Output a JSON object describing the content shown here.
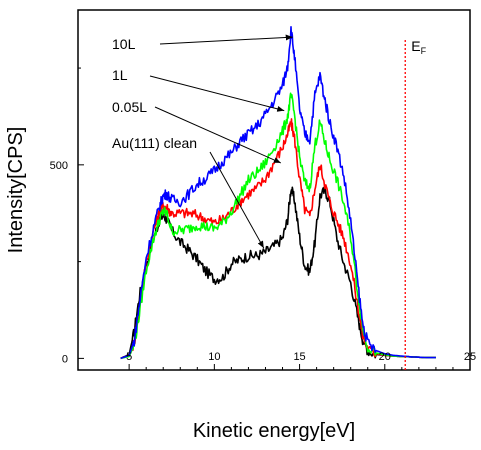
{
  "chart_data": {
    "type": "line",
    "xlabel": "Kinetic energy[eV]",
    "ylabel": "Intensity[CPS]",
    "xlim": [
      2,
      25
    ],
    "ylim": [
      -30,
      900
    ],
    "xticks": [
      5,
      10,
      15,
      20,
      25
    ],
    "yticks": [
      0,
      500
    ],
    "grid": false,
    "legend": "none",
    "fermi_level": {
      "label": "E",
      "subscript": "F",
      "x": 21.2,
      "color": "#ff0000",
      "style": "dotted"
    },
    "annotations": [
      {
        "text": "10L",
        "series": "10L",
        "target": [
          14.6,
          830
        ]
      },
      {
        "text": "1L",
        "series": "1L",
        "target": [
          14.1,
          640
        ]
      },
      {
        "text": "0.05L",
        "series": "0.05L",
        "target": [
          13.9,
          505
        ]
      },
      {
        "text": "Au(111) clean",
        "series": "Au(111) clean",
        "target": [
          12.9,
          285
        ]
      }
    ],
    "series": [
      {
        "name": "Au(111) clean",
        "color": "#000000",
        "x": [
          4.5,
          5.0,
          5.3,
          5.6,
          6.0,
          6.5,
          6.8,
          7.0,
          7.2,
          7.5,
          8.0,
          8.5,
          9.0,
          9.5,
          10.0,
          10.5,
          11.0,
          11.5,
          12.0,
          12.5,
          13.0,
          13.5,
          14.0,
          14.3,
          14.5,
          14.7,
          15.0,
          15.3,
          15.6,
          15.9,
          16.2,
          16.5,
          16.8,
          17.2,
          17.6,
          18.0,
          18.4,
          18.7,
          19.0,
          19.5,
          20.0,
          20.5,
          21.0,
          21.5,
          22.0,
          22.5,
          23.0
        ],
        "values": [
          0,
          10,
          70,
          160,
          245,
          320,
          360,
          370,
          360,
          330,
          300,
          280,
          255,
          225,
          205,
          210,
          245,
          255,
          265,
          265,
          275,
          290,
          310,
          360,
          440,
          410,
          315,
          240,
          225,
          300,
          420,
          435,
          400,
          310,
          245,
          195,
          110,
          50,
          20,
          10,
          8,
          6,
          5,
          4,
          3,
          2,
          2
        ]
      },
      {
        "name": "0.05L",
        "color": "#ff0000",
        "x": [
          4.5,
          5.0,
          5.3,
          5.6,
          6.0,
          6.5,
          6.8,
          7.0,
          7.2,
          7.5,
          8.0,
          8.5,
          9.0,
          9.5,
          10.0,
          10.5,
          11.0,
          11.5,
          12.0,
          12.5,
          13.0,
          13.5,
          14.0,
          14.3,
          14.5,
          14.7,
          15.0,
          15.3,
          15.6,
          15.9,
          16.2,
          16.5,
          16.8,
          17.2,
          17.6,
          18.0,
          18.4,
          18.7,
          19.0,
          19.5,
          20.0,
          20.5,
          21.0,
          21.5,
          22.0,
          22.5,
          23.0
        ],
        "values": [
          0,
          8,
          40,
          130,
          250,
          340,
          380,
          395,
          390,
          375,
          375,
          375,
          370,
          360,
          350,
          360,
          380,
          405,
          425,
          440,
          465,
          505,
          545,
          580,
          610,
          570,
          465,
          385,
          365,
          440,
          500,
          450,
          400,
          355,
          310,
          245,
          140,
          60,
          25,
          12,
          8,
          6,
          5,
          4,
          3,
          2,
          2
        ]
      },
      {
        "name": "1L",
        "color": "#00ff00",
        "x": [
          4.5,
          5.0,
          5.3,
          5.6,
          6.0,
          6.5,
          6.8,
          7.0,
          7.2,
          7.5,
          8.0,
          8.5,
          9.0,
          9.5,
          10.0,
          10.5,
          11.0,
          11.5,
          12.0,
          12.5,
          13.0,
          13.5,
          14.0,
          14.3,
          14.5,
          14.7,
          15.0,
          15.3,
          15.6,
          15.9,
          16.2,
          16.5,
          16.8,
          17.2,
          17.6,
          18.0,
          18.4,
          18.7,
          19.0,
          19.5,
          20.0,
          20.5,
          21.0,
          21.5,
          22.0,
          22.5,
          23.0
        ],
        "values": [
          0,
          5,
          35,
          115,
          230,
          320,
          360,
          380,
          375,
          330,
          330,
          335,
          345,
          340,
          335,
          350,
          380,
          420,
          460,
          480,
          505,
          545,
          585,
          625,
          680,
          630,
          520,
          455,
          440,
          550,
          610,
          555,
          510,
          460,
          400,
          315,
          175,
          80,
          30,
          14,
          9,
          6,
          5,
          4,
          3,
          2,
          2
        ]
      },
      {
        "name": "10L",
        "color": "#0000ff",
        "x": [
          4.5,
          5.0,
          5.3,
          5.6,
          6.0,
          6.5,
          6.8,
          7.0,
          7.2,
          7.5,
          8.0,
          8.5,
          9.0,
          9.5,
          10.0,
          10.5,
          11.0,
          11.5,
          12.0,
          12.5,
          13.0,
          13.5,
          14.0,
          14.3,
          14.5,
          14.7,
          15.0,
          15.3,
          15.6,
          15.9,
          16.2,
          16.5,
          16.8,
          17.2,
          17.6,
          18.0,
          18.4,
          18.7,
          19.0,
          19.5,
          20.0,
          20.5,
          21.0,
          21.5,
          22.0,
          22.5,
          23.0
        ],
        "values": [
          0,
          8,
          45,
          140,
          260,
          350,
          395,
          420,
          425,
          410,
          405,
          425,
          450,
          465,
          485,
          510,
          530,
          560,
          580,
          600,
          630,
          665,
          705,
          755,
          850,
          780,
          645,
          580,
          565,
          680,
          730,
          665,
          605,
          545,
          470,
          355,
          200,
          90,
          40,
          20,
          12,
          8,
          6,
          4,
          3,
          2,
          2
        ]
      }
    ]
  }
}
